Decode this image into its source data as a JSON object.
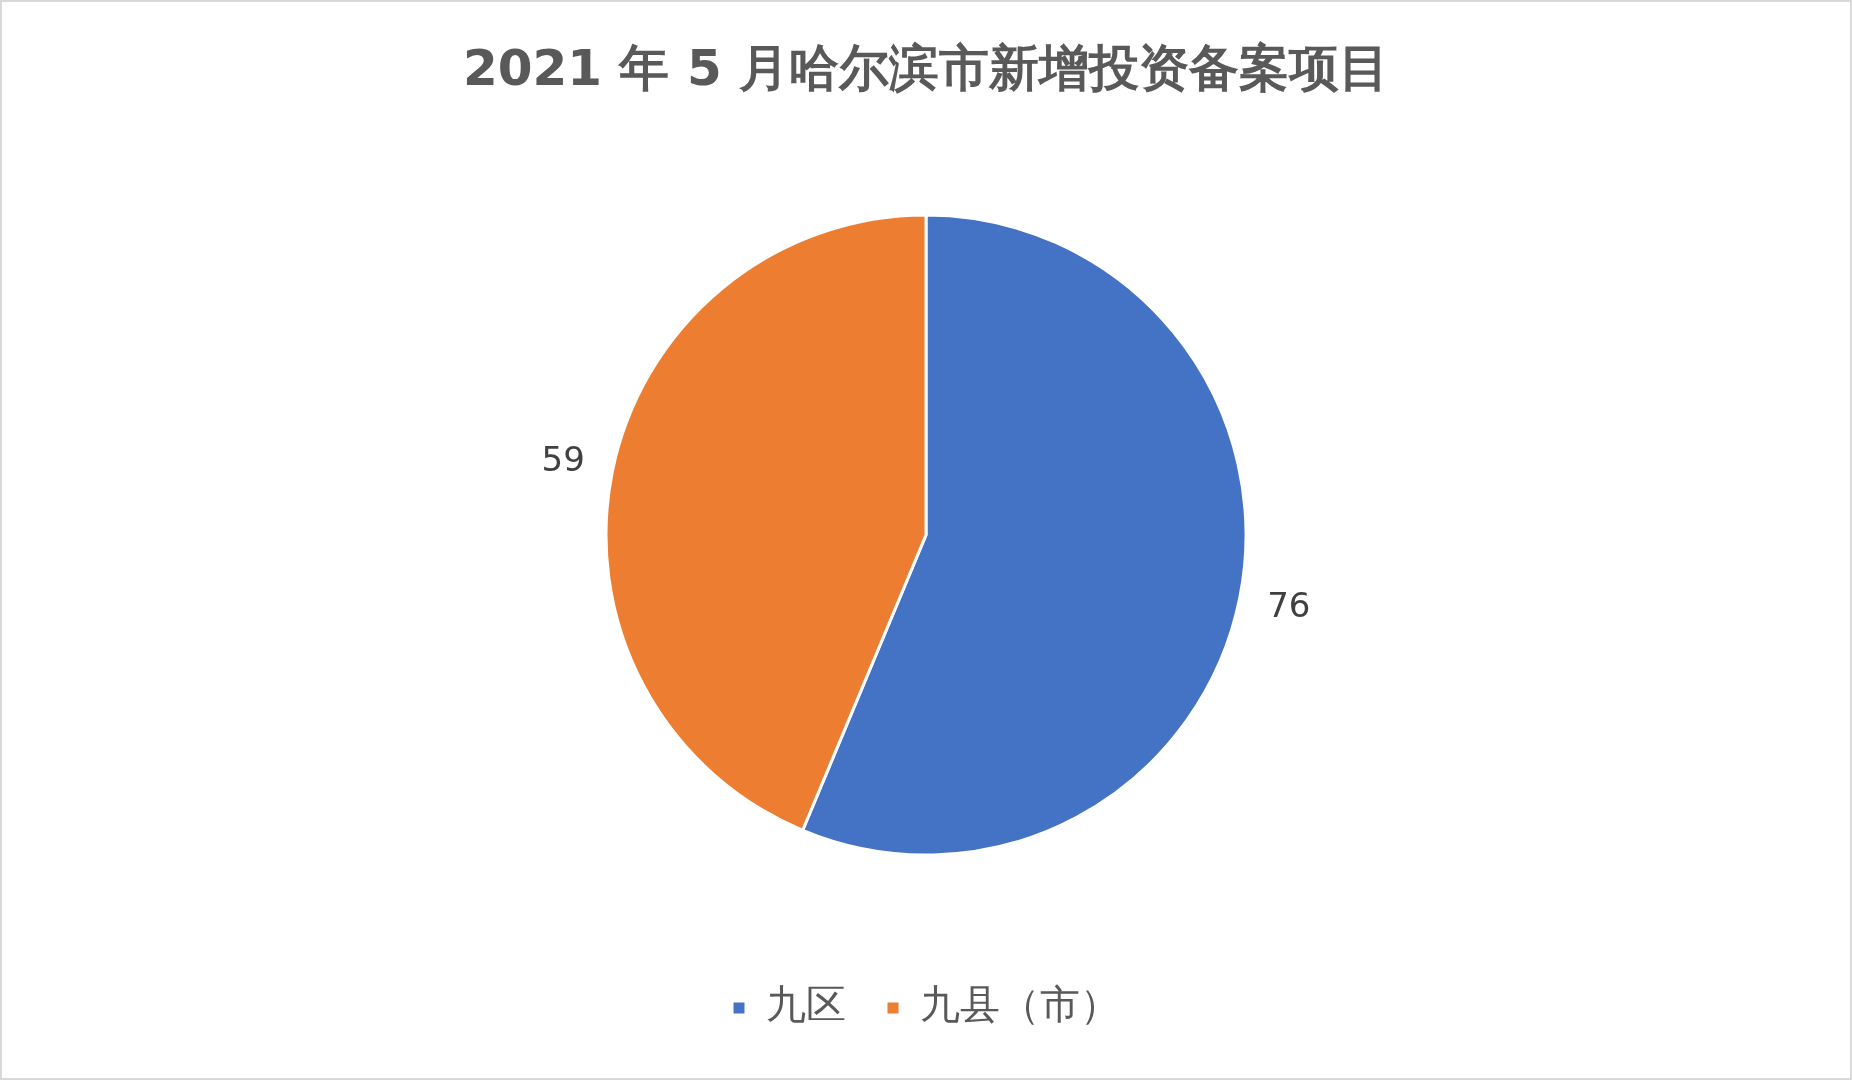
{
  "chart_data": {
    "type": "pie",
    "title": "2021 年 5 月哈尔滨市新增投资备案项目",
    "categories": [
      "九区",
      "九县（市）"
    ],
    "values": [
      76,
      59
    ],
    "colors": [
      "#4472c4",
      "#ed7d31"
    ],
    "data_labels": true,
    "legend": "bottom"
  }
}
